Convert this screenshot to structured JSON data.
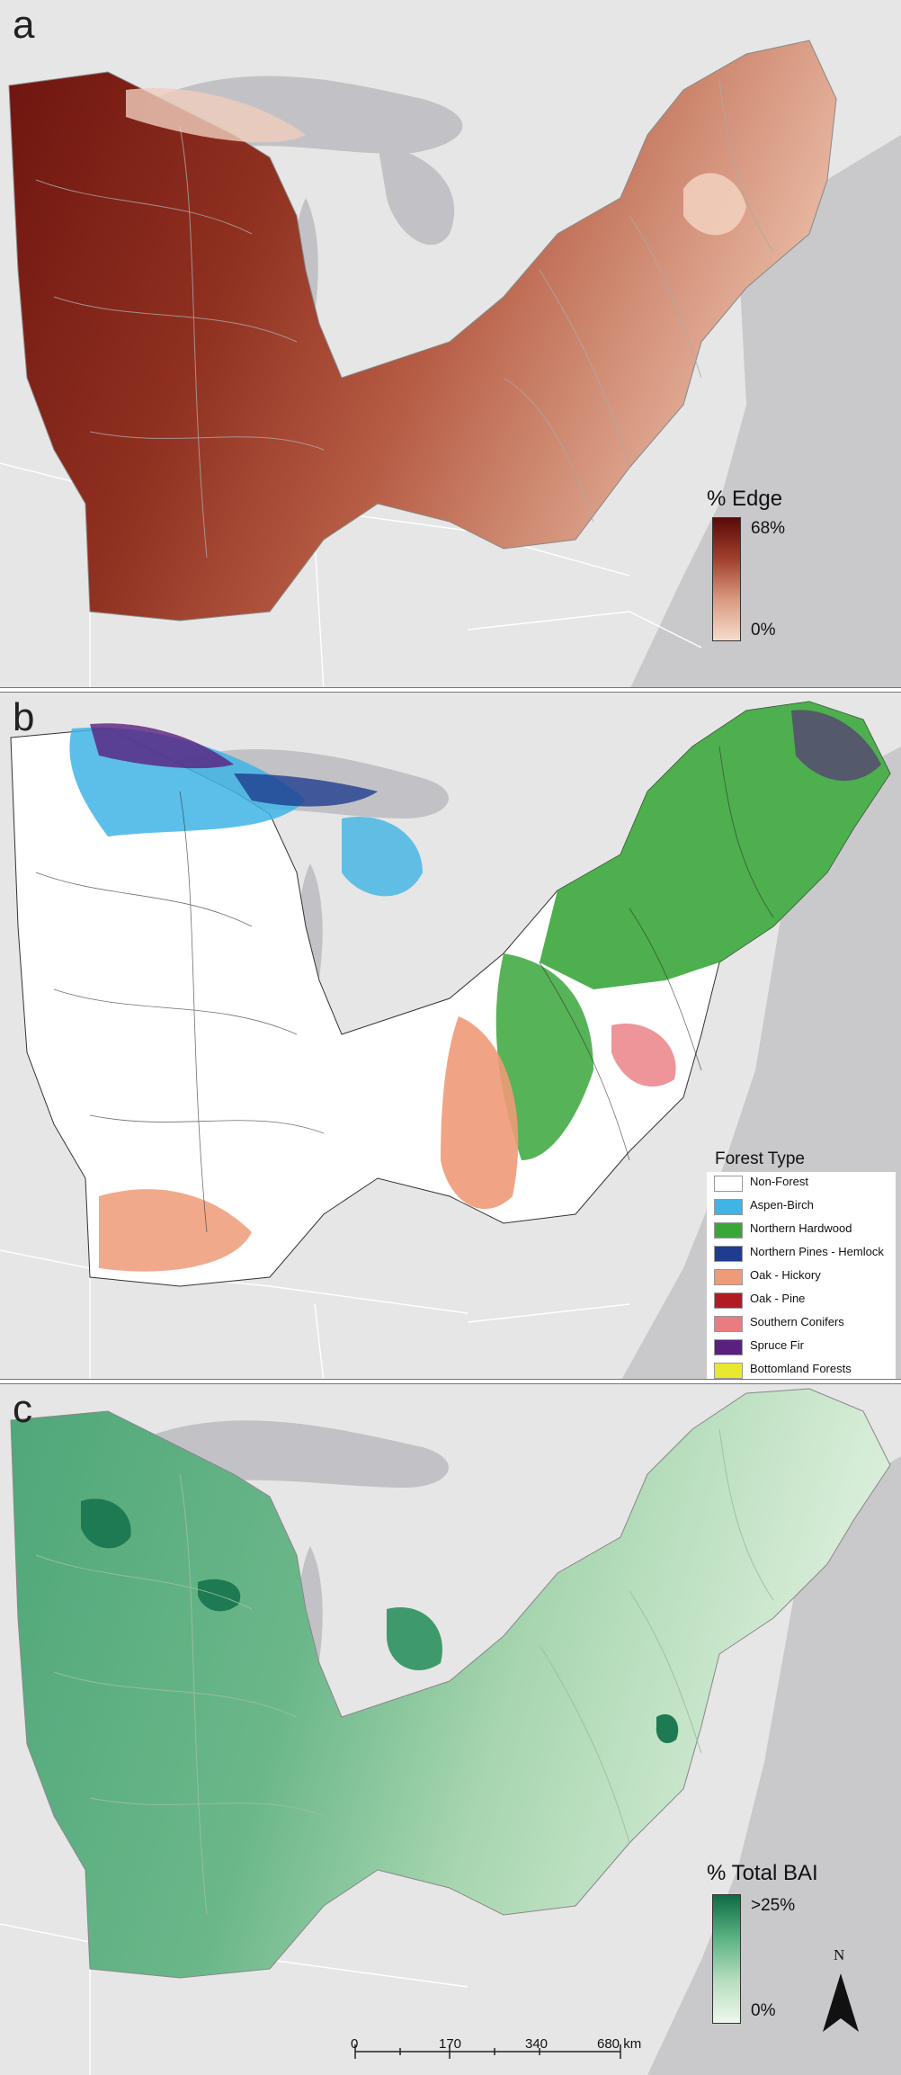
{
  "panels": {
    "a": {
      "letter": "a",
      "legend_title": "% Edge",
      "max_label": "68%",
      "min_label": "0%",
      "colors": [
        "#5a0a08",
        "#f5dccb"
      ]
    },
    "b": {
      "letter": "b",
      "legend_title": "Forest Type",
      "classes": [
        {
          "label": "Non-Forest",
          "color": "#ffffff"
        },
        {
          "label": "Aspen-Birch",
          "color": "#3fb4e5"
        },
        {
          "label": "Northern Hardwood",
          "color": "#3aa63a"
        },
        {
          "label": "Northern Pines - Hemlock",
          "color": "#1f3d8f"
        },
        {
          "label": "Oak - Hickory",
          "color": "#ef9a78"
        },
        {
          "label": "Oak - Pine",
          "color": "#b01c22"
        },
        {
          "label": "Southern Conifers",
          "color": "#ea7b80"
        },
        {
          "label": "Spruce Fir",
          "color": "#5a2080"
        },
        {
          "label": "Bottomland Forests",
          "color": "#e8e830"
        }
      ]
    },
    "c": {
      "letter": "c",
      "legend_title": "% Total BAI",
      "max_label": ">25%",
      "min_label": "0%",
      "colors": [
        "#0e6b45",
        "#eef7ee"
      ]
    }
  },
  "scale_bar": {
    "ticks": [
      "0",
      "170",
      "340",
      "680 km"
    ]
  },
  "north_arrow": {
    "label": "N"
  }
}
